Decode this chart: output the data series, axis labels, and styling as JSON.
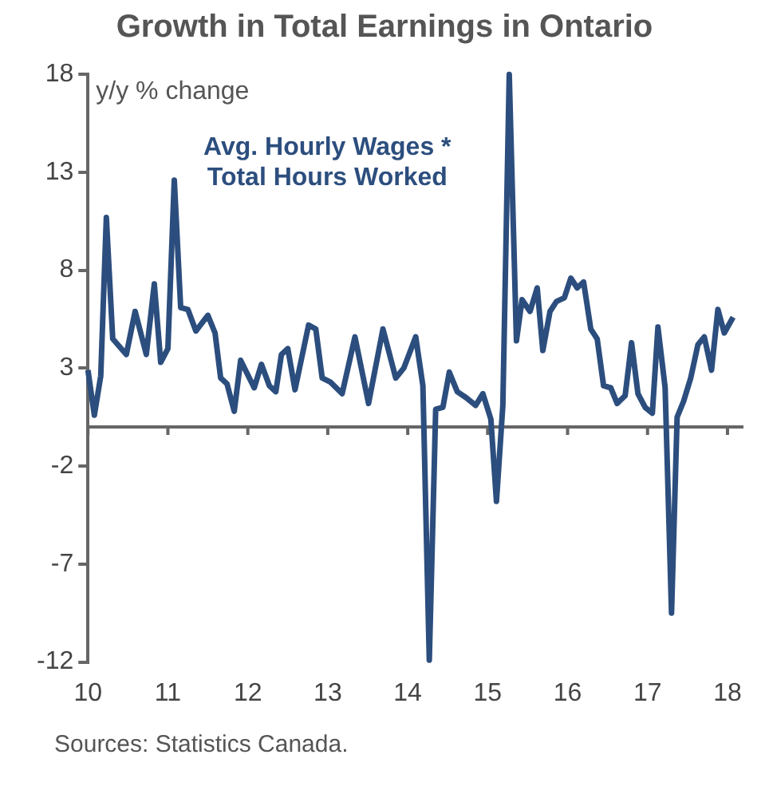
{
  "chart_data": {
    "type": "line",
    "title": "Growth in Total Earnings in Ontario",
    "ylabel": "y/y % change",
    "annotations": [
      "Sources: Statistics Canada."
    ],
    "xlim": [
      10,
      18.2
    ],
    "xticks": [
      10,
      11,
      12,
      13,
      14,
      15,
      16,
      17,
      18
    ],
    "ylim": [
      -12,
      18
    ],
    "yticks": [
      -12,
      -7,
      -2,
      3,
      8,
      13,
      18
    ],
    "grid": false,
    "legend": false,
    "marker": "none",
    "line_style": "solid",
    "ref_lines": [
      {
        "axis": "y",
        "value": 0,
        "color": "#666666"
      }
    ],
    "series": [
      {
        "name": "Avg. Hourly Wages * Total Hours Worked",
        "color": "#2c4e7e",
        "x": [
          10.0,
          10.08,
          10.16,
          10.23,
          10.31,
          10.48,
          10.59,
          10.73,
          10.83,
          10.91,
          11.0,
          11.08,
          11.16,
          11.25,
          11.35,
          11.5,
          11.59,
          11.66,
          11.74,
          11.83,
          11.91,
          12.08,
          12.17,
          12.27,
          12.35,
          12.42,
          12.5,
          12.59,
          12.76,
          12.85,
          12.93,
          13.03,
          13.18,
          13.34,
          13.51,
          13.69,
          13.85,
          13.95,
          14.1,
          14.19,
          14.27,
          14.35,
          14.44,
          14.52,
          14.62,
          14.73,
          14.85,
          14.94,
          15.04,
          15.11,
          15.19,
          15.27,
          15.36,
          15.43,
          15.53,
          15.62,
          15.69,
          15.78,
          15.86,
          15.96,
          16.04,
          16.12,
          16.2,
          16.29,
          16.37,
          16.45,
          16.54,
          16.62,
          16.72,
          16.8,
          16.88,
          16.97,
          17.06,
          17.13,
          17.22,
          17.3,
          17.37,
          17.45,
          17.54,
          17.63,
          17.71,
          17.8,
          17.88,
          17.96,
          18.07
        ],
        "values": [
          2.9,
          0.6,
          2.6,
          10.7,
          4.5,
          3.7,
          5.9,
          3.7,
          7.3,
          3.3,
          4.0,
          12.6,
          6.1,
          6.0,
          4.9,
          5.7,
          4.8,
          2.5,
          2.2,
          0.8,
          3.4,
          2.0,
          3.2,
          2.1,
          1.8,
          3.7,
          4.0,
          1.9,
          5.2,
          5.0,
          2.5,
          2.3,
          1.7,
          4.6,
          1.2,
          5.0,
          2.5,
          3.0,
          4.6,
          2.1,
          -11.9,
          0.9,
          1.0,
          2.8,
          1.8,
          1.5,
          1.1,
          1.7,
          0.4,
          -3.8,
          1.1,
          18.0,
          4.4,
          6.5,
          5.9,
          7.1,
          3.9,
          5.9,
          6.4,
          6.6,
          7.6,
          7.1,
          7.4,
          5.0,
          4.5,
          2.1,
          2.0,
          1.2,
          1.6,
          4.3,
          1.7,
          1.0,
          0.7,
          5.1,
          2.0,
          -9.5,
          0.5,
          1.3,
          2.5,
          4.2,
          4.6,
          2.9,
          6.0,
          4.8,
          5.6
        ]
      }
    ]
  }
}
